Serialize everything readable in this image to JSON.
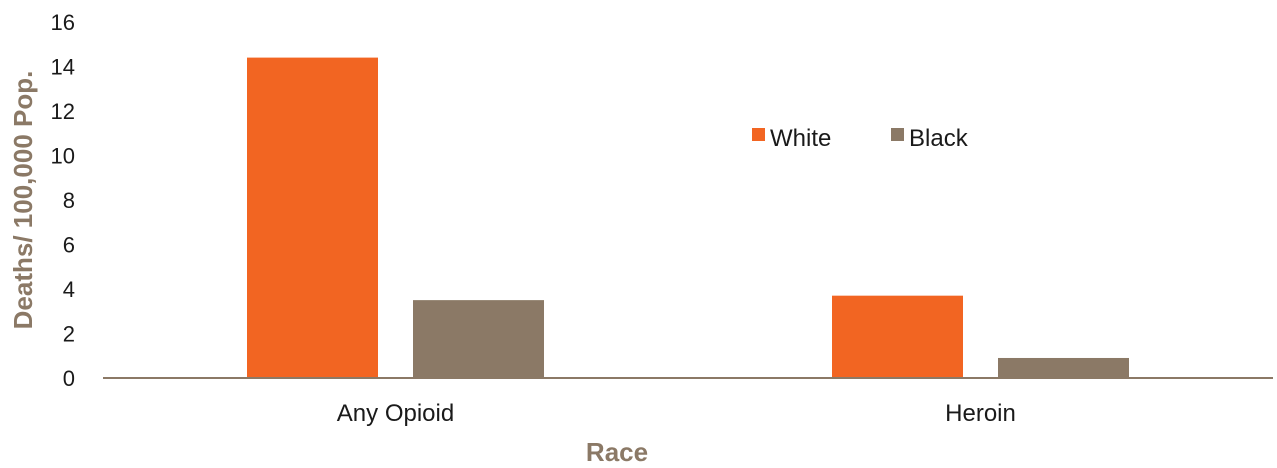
{
  "chart_data": {
    "type": "bar",
    "categories": [
      "Any Opioid",
      "Heroin"
    ],
    "series": [
      {
        "name": "White",
        "values": [
          14.4,
          3.7
        ],
        "color": "#f26522"
      },
      {
        "name": "Black",
        "values": [
          3.5,
          0.9
        ],
        "color": "#8b7966"
      }
    ],
    "xlabel": "Race",
    "ylabel": "Deaths/ 100,000 Pop.",
    "ylim": [
      0,
      16
    ],
    "yticks": [
      0,
      2,
      4,
      6,
      8,
      10,
      12,
      14,
      16
    ],
    "grid": false,
    "legend_position": "top-right",
    "axis_color": "#8b7966"
  }
}
